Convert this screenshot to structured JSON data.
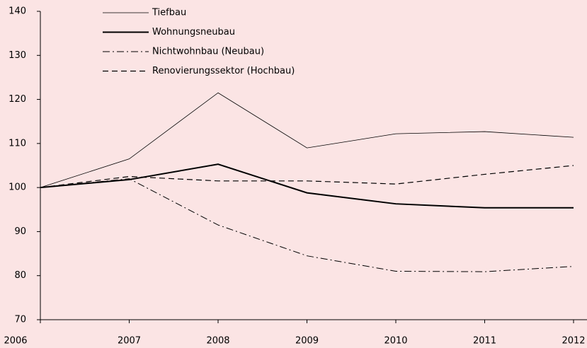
{
  "chart_data": {
    "type": "line",
    "x": [
      2006,
      2007,
      2008,
      2009,
      2010,
      2011,
      2012
    ],
    "xlim": [
      2006,
      2012
    ],
    "xticks": [
      2006,
      2007,
      2008,
      2009,
      2010,
      2011,
      2012
    ],
    "ylim": [
      70,
      140
    ],
    "yticks": [
      70,
      80,
      90,
      100,
      110,
      120,
      130,
      140
    ],
    "legend": "top",
    "series": [
      {
        "name": "Tiefbau",
        "color": "#000000",
        "line_style": "solid",
        "line_width": 0.8,
        "values": [
          100,
          106.5,
          121.5,
          109,
          112.2,
          112.7,
          111.4
        ]
      },
      {
        "name": "Wohnungsneubau",
        "color": "#000000",
        "line_style": "solid",
        "line_width": 2,
        "values": [
          100,
          101.8,
          105.3,
          98.8,
          96.3,
          95.4,
          95.4
        ]
      },
      {
        "name": "Nichtwohnbau (Neubau)",
        "color": "#000000",
        "line_style": "dashdot",
        "line_width": 1,
        "values": [
          100,
          102,
          91.5,
          84.5,
          81,
          80.9,
          82.1
        ]
      },
      {
        "name": "Renovierungssektor (Hochbau)",
        "color": "#000000",
        "line_style": "dashed",
        "line_width": 1.2,
        "values": [
          100,
          102.5,
          101.5,
          101.5,
          100.8,
          103,
          105
        ]
      }
    ]
  }
}
